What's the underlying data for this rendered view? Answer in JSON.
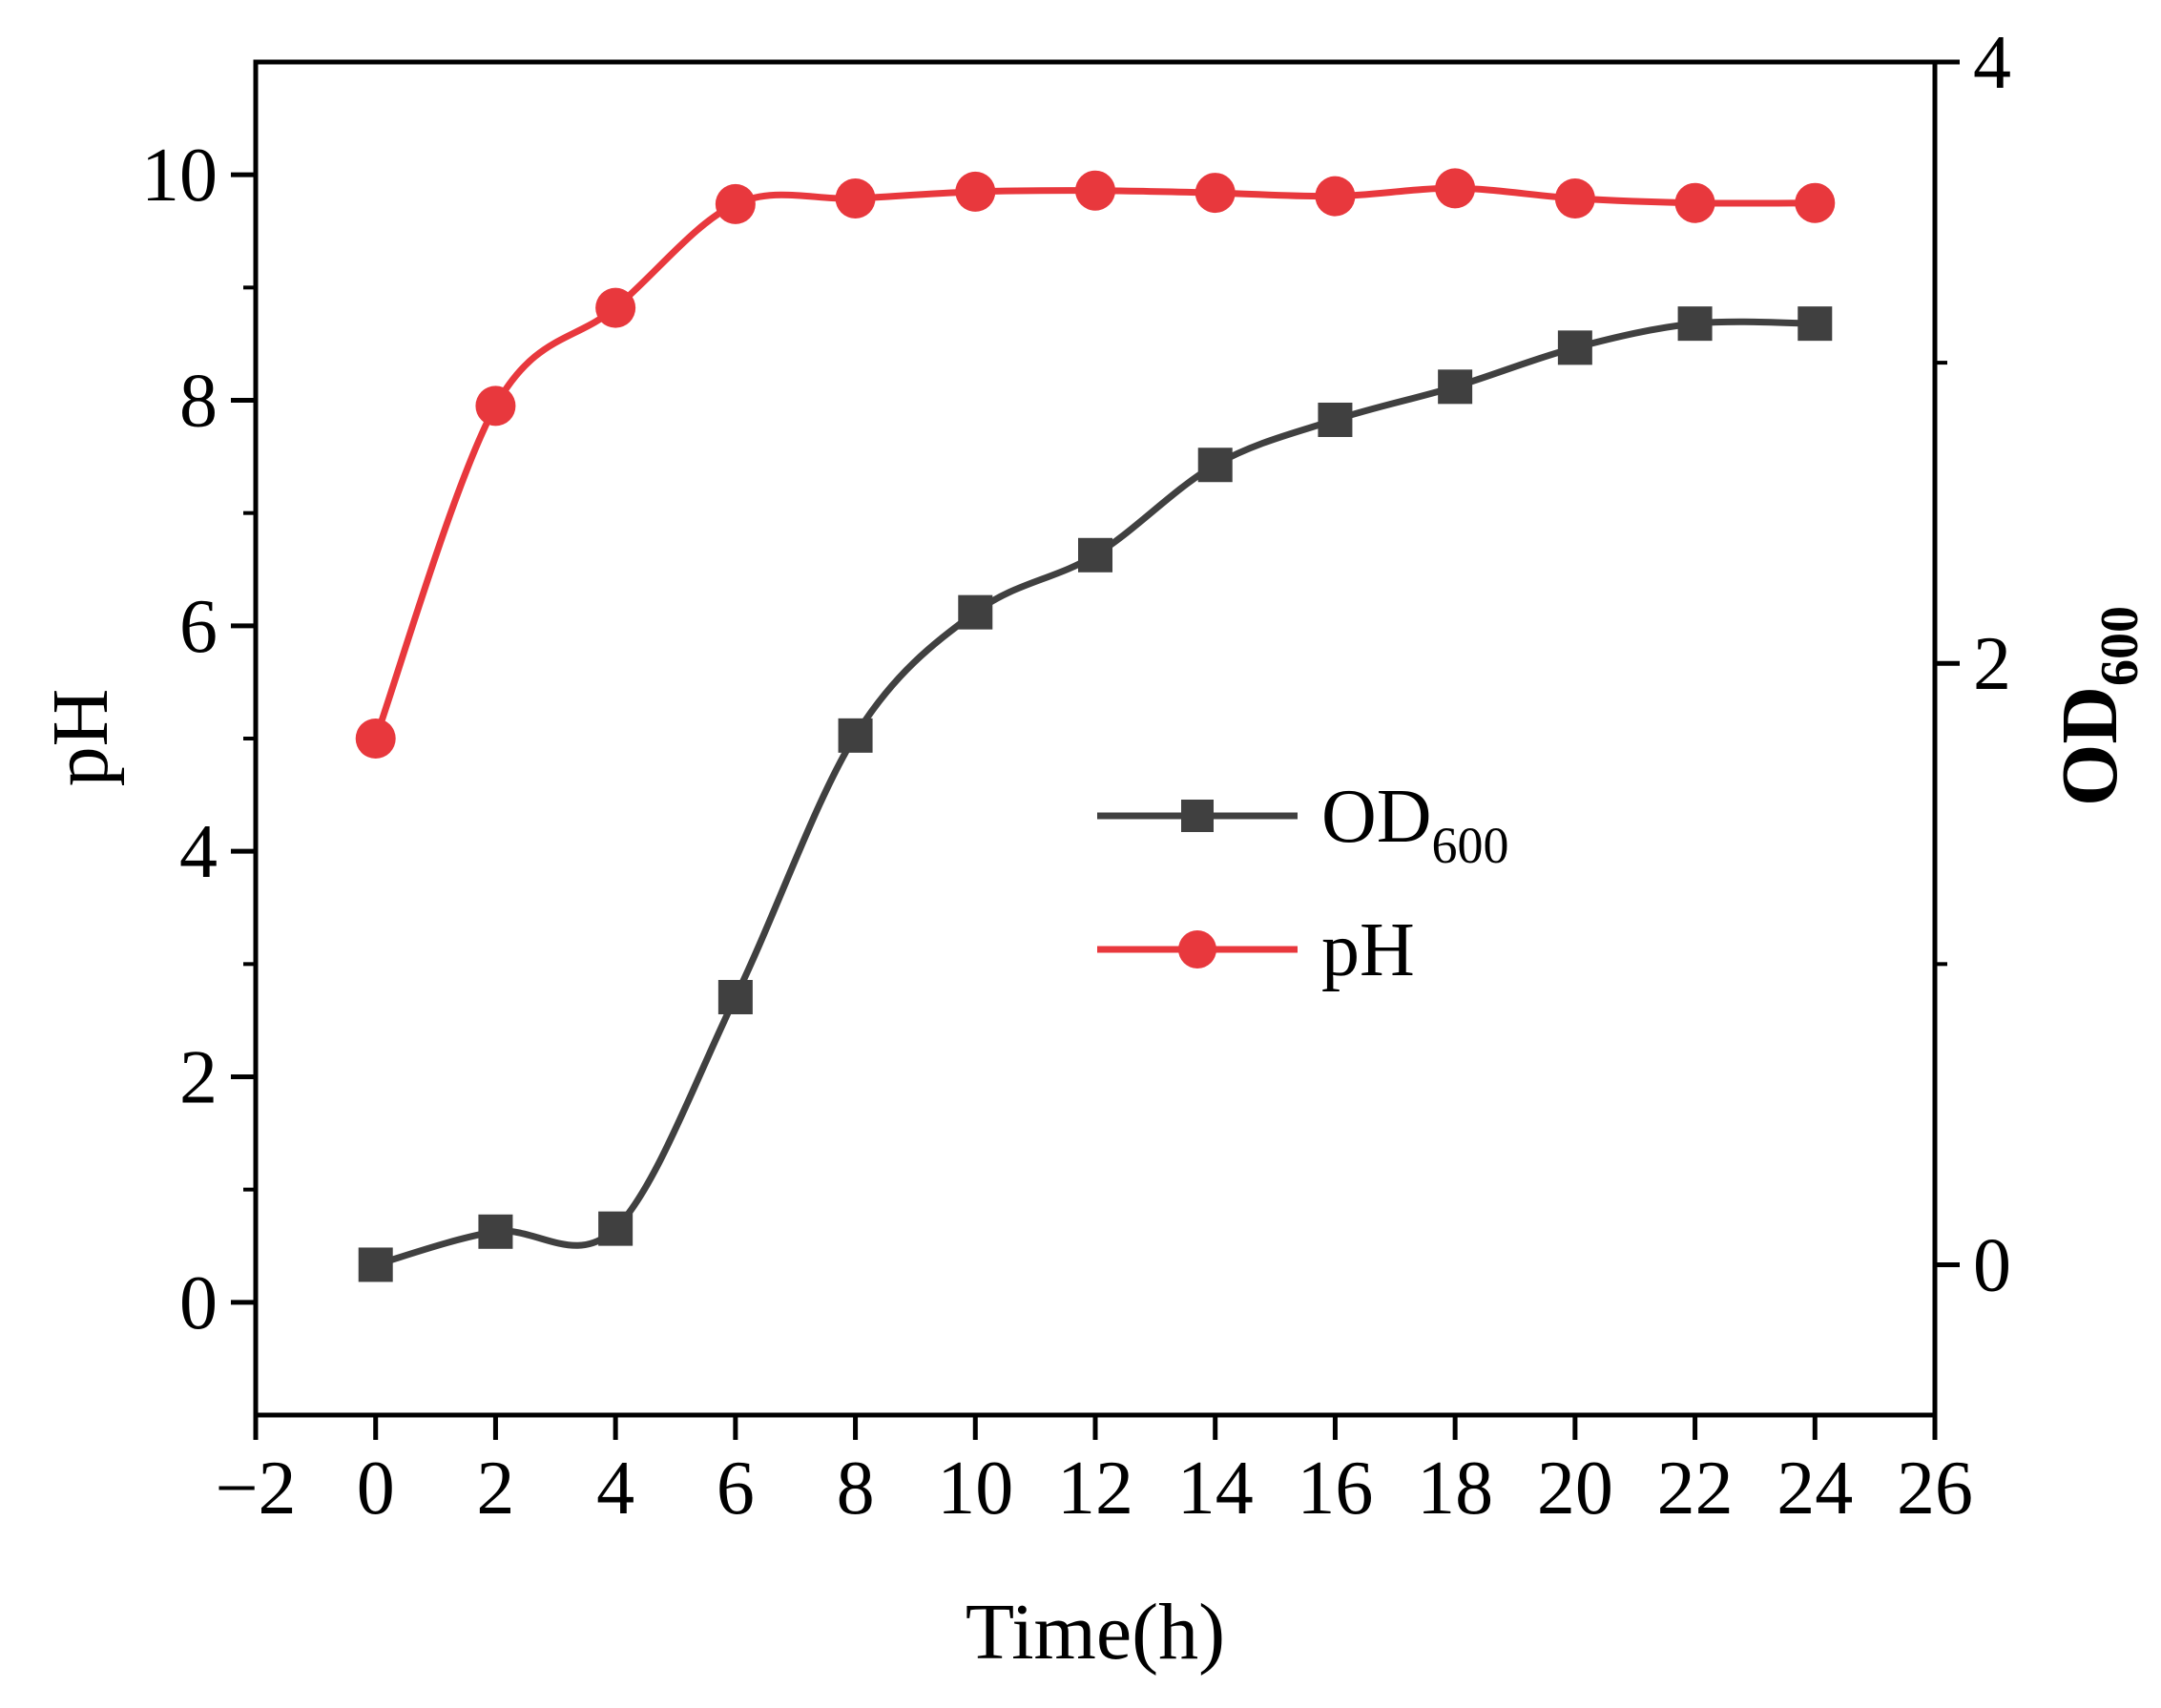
{
  "chart_data": {
    "type": "line",
    "x": [
      0,
      2,
      4,
      6,
      8,
      10,
      12,
      14,
      16,
      18,
      20,
      22,
      24
    ],
    "xlim": [
      -2,
      26
    ],
    "xticks": [
      -2,
      0,
      2,
      4,
      6,
      8,
      10,
      12,
      14,
      16,
      18,
      20,
      22,
      24,
      26
    ],
    "xtick_labels": [
      "−2",
      "0",
      "2",
      "4",
      "6",
      "8",
      "10",
      "12",
      "14",
      "16",
      "18",
      "20",
      "22",
      "24",
      "26"
    ],
    "xlabel": "Time(h)",
    "left_axis": {
      "label": "pH",
      "ylim": [
        -1,
        11
      ],
      "ticks": [
        0,
        2,
        4,
        6,
        8,
        10
      ],
      "tick_labels": [
        "0",
        "2",
        "4",
        "6",
        "8",
        "10"
      ],
      "minor_ticks": [
        1,
        3,
        5,
        7,
        9
      ]
    },
    "right_axis": {
      "label_main": "OD",
      "label_sub": "600",
      "ylim": [
        -0.5,
        4
      ],
      "ticks": [
        0,
        2,
        4
      ],
      "tick_labels": [
        "0",
        "2",
        "4"
      ],
      "minor_ticks": [
        1,
        3
      ]
    },
    "series": [
      {
        "name": "OD600",
        "legend_main": "OD",
        "legend_sub": "600",
        "axis": "right",
        "marker": "square",
        "color": "#404040",
        "values": [
          0.0,
          0.11,
          0.12,
          0.89,
          1.76,
          2.17,
          2.36,
          2.66,
          2.81,
          2.92,
          3.05,
          3.13,
          3.13
        ]
      },
      {
        "name": "pH",
        "legend_main": "pH",
        "legend_sub": "",
        "axis": "left",
        "marker": "circle",
        "color": "#e8383d",
        "values": [
          5.0,
          7.95,
          8.82,
          9.74,
          9.79,
          9.85,
          9.86,
          9.84,
          9.81,
          9.88,
          9.79,
          9.75,
          9.75
        ]
      }
    ],
    "legend_position": "center-right"
  }
}
